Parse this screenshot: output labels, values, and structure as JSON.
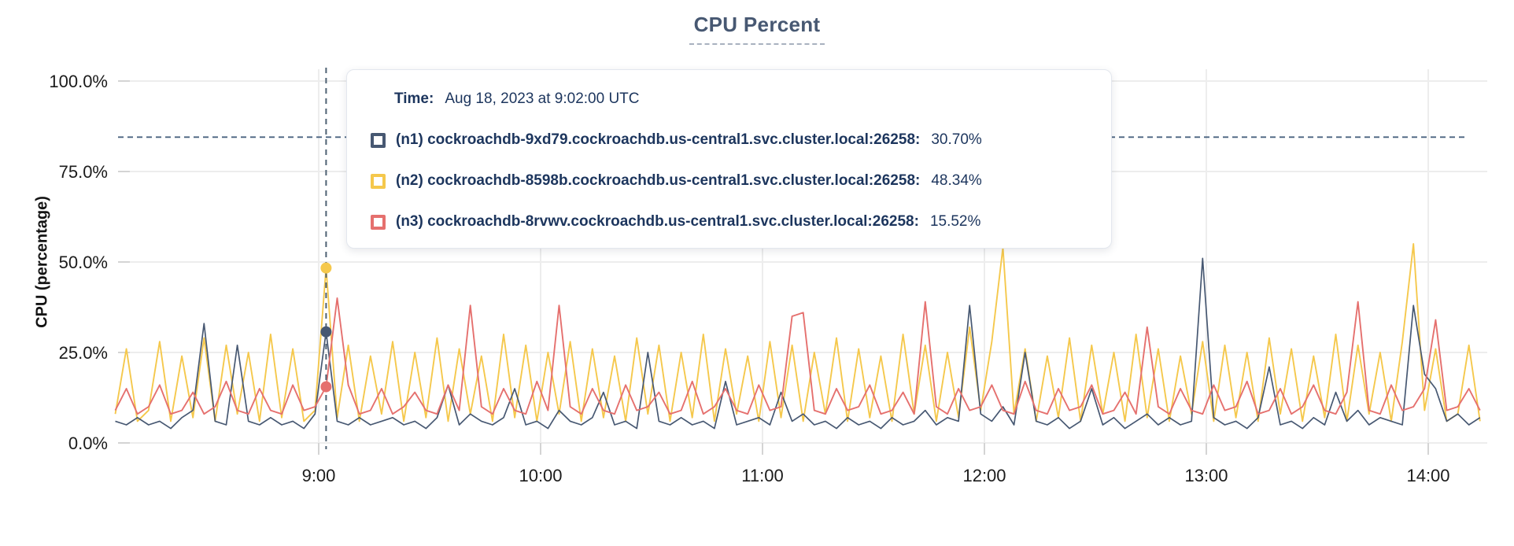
{
  "chart_data": {
    "type": "line",
    "title": "CPU Percent",
    "ylabel": "CPU (percentage)",
    "ylim": [
      0,
      100
    ],
    "grid": true,
    "title_color": "#475872",
    "y_ticks": [
      {
        "value": 0,
        "label": "0.0%"
      },
      {
        "value": 25,
        "label": "25.0%"
      },
      {
        "value": 50,
        "label": "50.0%"
      },
      {
        "value": 75,
        "label": "75.0%"
      },
      {
        "value": 100,
        "label": "100.0%"
      }
    ],
    "x_ticks": [
      {
        "minutes": 540,
        "label": "9:00"
      },
      {
        "minutes": 600,
        "label": "10:00"
      },
      {
        "minutes": 660,
        "label": "11:00"
      },
      {
        "minutes": 720,
        "label": "12:00"
      },
      {
        "minutes": 780,
        "label": "13:00"
      },
      {
        "minutes": 840,
        "label": "14:00"
      }
    ],
    "x_start_minutes": 485,
    "x_step_minutes": 3,
    "threshold": {
      "value": 84.5,
      "color": "#4a6380"
    },
    "hover": {
      "index": 19,
      "time_minutes": 542,
      "line_color": "#4e6173"
    },
    "series": [
      {
        "id": "n2",
        "name": "(n2) cockroachdb-8598b.cockroachdb.us-central1.svc.cluster.local:26258",
        "color": "#f5c84c",
        "values": [
          8,
          26,
          6,
          9,
          28,
          6,
          24,
          7,
          29,
          6,
          27,
          8,
          25,
          6,
          30,
          7,
          26,
          6,
          9,
          48.34,
          7,
          27,
          6,
          24,
          8,
          28,
          6,
          25,
          7,
          29,
          6,
          26,
          8,
          24,
          6,
          30,
          7,
          27,
          6,
          25,
          8,
          28,
          6,
          26,
          7,
          24,
          6,
          29,
          8,
          27,
          6,
          25,
          7,
          30,
          6,
          26,
          8,
          24,
          6,
          28,
          7,
          27,
          6,
          25,
          8,
          29,
          6,
          26,
          7,
          24,
          6,
          30,
          8,
          27,
          6,
          25,
          7,
          32,
          9,
          28,
          54,
          8,
          26,
          6,
          24,
          7,
          29,
          6,
          27,
          8,
          25,
          6,
          30,
          7,
          26,
          6,
          24,
          8,
          28,
          6,
          27,
          7,
          25,
          6,
          29,
          8,
          26,
          6,
          24,
          7,
          30,
          6,
          27,
          8,
          25,
          6,
          28,
          55,
          9,
          26,
          6,
          8,
          27,
          6
        ]
      },
      {
        "id": "n1",
        "name": "(n1) cockroachdb-9xd79.cockroachdb.us-central1.svc.cluster.local:26258",
        "color": "#475872",
        "values": [
          6,
          5,
          7,
          5,
          6,
          4,
          7,
          9,
          33,
          6,
          5,
          27,
          6,
          5,
          7,
          5,
          6,
          4,
          8,
          30.7,
          6,
          5,
          7,
          5,
          6,
          7,
          5,
          6,
          4,
          7,
          16,
          5,
          8,
          6,
          5,
          7,
          15,
          5,
          6,
          4,
          9,
          6,
          5,
          7,
          14,
          5,
          6,
          4,
          25,
          6,
          5,
          7,
          5,
          6,
          4,
          17,
          5,
          6,
          7,
          5,
          14,
          6,
          8,
          5,
          6,
          4,
          7,
          5,
          6,
          4,
          7,
          5,
          6,
          9,
          5,
          7,
          6,
          38,
          8,
          6,
          10,
          5,
          25,
          6,
          5,
          7,
          4,
          6,
          15,
          5,
          7,
          4,
          6,
          8,
          5,
          7,
          5,
          6,
          51,
          7,
          5,
          6,
          4,
          7,
          21,
          5,
          6,
          4,
          7,
          5,
          14,
          6,
          9,
          5,
          7,
          6,
          5,
          38,
          19,
          15,
          6,
          8,
          5,
          7
        ]
      },
      {
        "id": "n3",
        "name": "(n3) cockroachdb-8rvwv.cockroachdb.us-central1.svc.cluster.local:26258",
        "color": "#e5706e",
        "values": [
          9,
          15,
          8,
          10,
          16,
          8,
          9,
          14,
          8,
          10,
          17,
          9,
          8,
          15,
          9,
          8,
          16,
          9,
          10,
          15.52,
          40,
          16,
          8,
          9,
          15,
          8,
          10,
          14,
          9,
          8,
          16,
          9,
          38,
          10,
          8,
          15,
          9,
          8,
          17,
          9,
          38,
          10,
          8,
          15,
          9,
          8,
          16,
          9,
          10,
          14,
          8,
          9,
          17,
          8,
          10,
          15,
          9,
          8,
          16,
          9,
          10,
          35,
          36,
          9,
          8,
          15,
          9,
          10,
          16,
          8,
          9,
          14,
          8,
          39,
          10,
          8,
          15,
          9,
          10,
          16,
          9,
          8,
          17,
          9,
          8,
          15,
          9,
          10,
          16,
          8,
          9,
          14,
          8,
          32,
          10,
          8,
          15,
          9,
          8,
          16,
          9,
          10,
          17,
          8,
          9,
          15,
          8,
          10,
          16,
          9,
          8,
          14,
          39,
          9,
          8,
          16,
          9,
          10,
          15,
          34,
          9,
          10,
          15,
          9
        ]
      }
    ]
  },
  "tooltip": {
    "time_label": "Time:",
    "time_value": "Aug 18, 2023 at 9:02:00 UTC",
    "rows": [
      {
        "label": "(n1) cockroachdb-9xd79.cockroachdb.us-central1.svc.cluster.local:26258:",
        "value": "30.70%",
        "color": "#475872"
      },
      {
        "label": "(n2) cockroachdb-8598b.cockroachdb.us-central1.svc.cluster.local:26258:",
        "value": "48.34%",
        "color": "#f5c84c"
      },
      {
        "label": "(n3) cockroachdb-8rvwv.cockroachdb.us-central1.svc.cluster.local:26258:",
        "value": "15.52%",
        "color": "#e5706e"
      }
    ]
  }
}
